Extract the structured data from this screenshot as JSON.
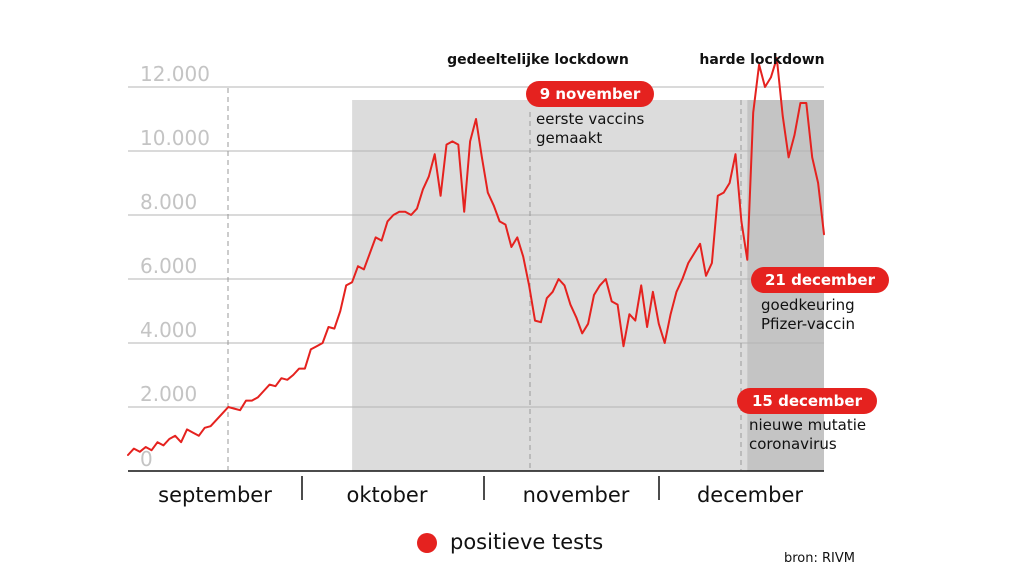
{
  "chart_data": {
    "type": "line",
    "y_ticks": [
      "0",
      "2.000",
      "4.000",
      "6.000",
      "8.000",
      "10.000",
      "12.000"
    ],
    "ylim": [
      0,
      12000
    ],
    "months": [
      "september",
      "oktober",
      "november",
      "december"
    ],
    "series": [
      {
        "name": "positieve tests",
        "color": "#e5221f",
        "values": [
          500,
          700,
          600,
          750,
          650,
          900,
          800,
          1000,
          1100,
          900,
          1300,
          1200,
          1100,
          1350,
          1400,
          1600,
          1800,
          2000,
          1950,
          1900,
          2200,
          2200,
          2300,
          2500,
          2700,
          2650,
          2900,
          2850,
          3000,
          3200,
          3200,
          3800,
          3900,
          4000,
          4500,
          4450,
          5000,
          5800,
          5900,
          6400,
          6300,
          6800,
          7300,
          7200,
          7800,
          8000,
          8100,
          8100,
          8000,
          8200,
          8800,
          9200,
          9900,
          8600,
          10200,
          10300,
          10200,
          8100,
          10300,
          11000,
          9800,
          8700,
          8300,
          7800,
          7700,
          7000,
          7300,
          6700,
          5800,
          4700,
          4650,
          5400,
          5600,
          6000,
          5800,
          5200,
          4800,
          4300,
          4600,
          5500,
          5800,
          6000,
          5300,
          5200,
          3900,
          4900,
          4700,
          5800,
          4500,
          5600,
          4600,
          4000,
          4900,
          5600,
          6000,
          6500,
          6800,
          7100,
          6100,
          6500,
          8600,
          8700,
          9000,
          9900,
          7800,
          6600,
          11200,
          12700,
          12000,
          12300,
          12900,
          11100,
          9800,
          10500,
          11500,
          11500,
          9800,
          9000,
          7400
        ]
      }
    ],
    "shaded_periods": [
      {
        "label": "gedeeltelijke lockdown",
        "start_index": 38,
        "end_index": 118,
        "color": "#dcdcdc"
      },
      {
        "label": "harde lockdown",
        "start_index": 105,
        "end_index": 118,
        "color": "#c4c4c4"
      }
    ],
    "annotations": [
      {
        "date": "9 november",
        "text_lines": [
          "eerste vaccins",
          "gemaakt"
        ],
        "index": 69
      },
      {
        "date": "21 december",
        "text_lines": [
          "goedkeuring",
          "Pfizer-vaccin"
        ],
        "index": 112
      },
      {
        "date": "15 december",
        "text_lines": [
          "nieuwe mutatie",
          "coronavirus"
        ],
        "index": 106
      }
    ],
    "legend": {
      "label": "positieve tests",
      "position": "bottom-center"
    },
    "source": "bron: RIVM",
    "grid": true
  }
}
